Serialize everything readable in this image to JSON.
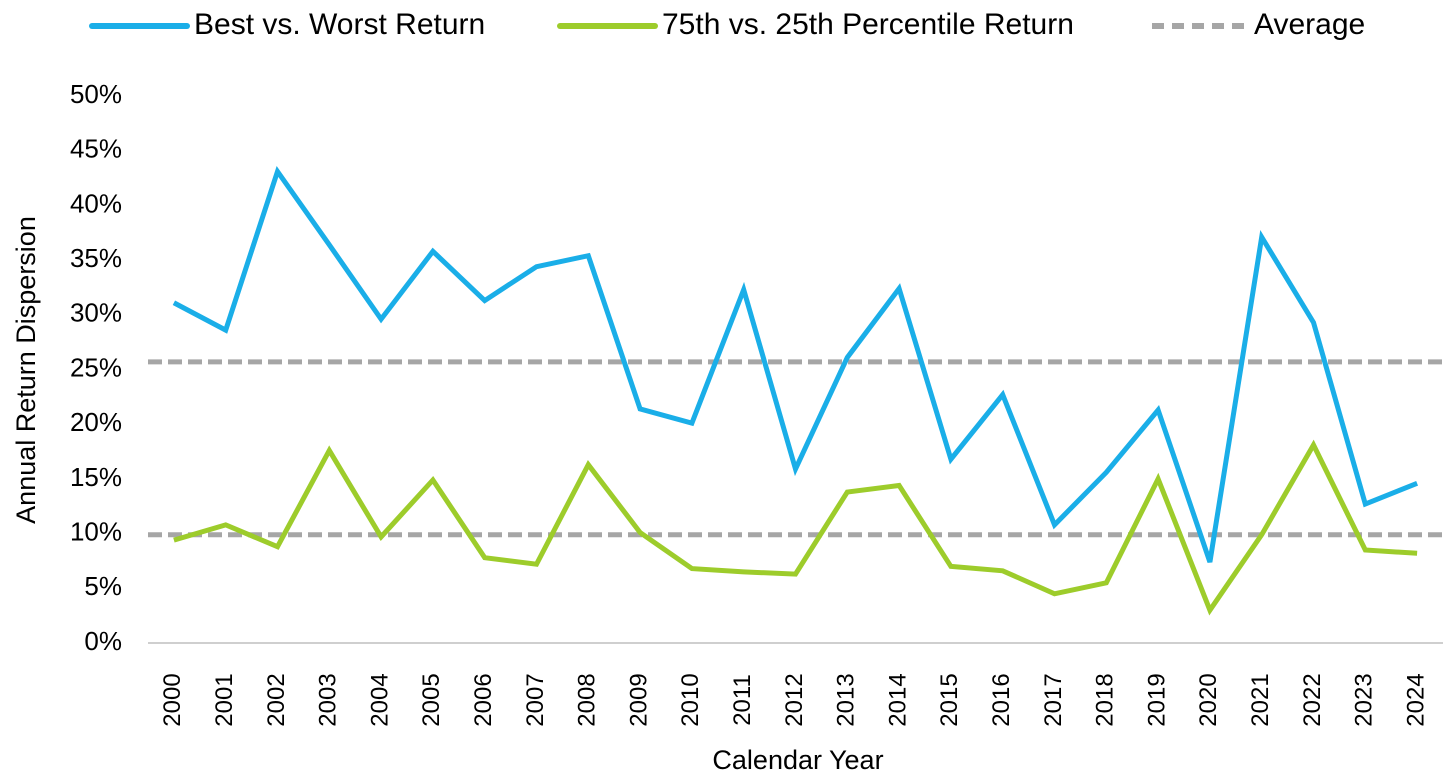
{
  "chart_data": {
    "type": "line",
    "legend": "top",
    "y_label": "Annual Return Dispersion",
    "x_label": "Calendar Year",
    "categories": [
      "2000",
      "2001",
      "2002",
      "2003",
      "2004",
      "2005",
      "2006",
      "2007",
      "2008",
      "2009",
      "2010",
      "2011",
      "2012",
      "2013",
      "2014",
      "2015",
      "2016",
      "2017",
      "2018",
      "2019",
      "2020",
      "2021",
      "2022",
      "2023",
      "2024"
    ],
    "series": [
      {
        "name": "Best vs. Worst Return",
        "color": "#1aaee8",
        "values": [
          31.1,
          28.6,
          43.1,
          36.4,
          29.6,
          35.8,
          31.3,
          34.4,
          35.4,
          21.4,
          20.1,
          32.3,
          15.9,
          26.1,
          32.4,
          16.8,
          22.7,
          10.8,
          15.6,
          21.3,
          7.4,
          37.1,
          29.3,
          12.7,
          14.6
        ]
      },
      {
        "name": "75th vs. 25th Percentile Return",
        "color": "#9dcc2b",
        "values": [
          9.4,
          10.8,
          8.8,
          17.6,
          9.7,
          14.9,
          7.8,
          7.2,
          16.3,
          10.1,
          6.8,
          6.5,
          6.3,
          13.8,
          14.4,
          7.0,
          6.6,
          4.5,
          5.5,
          15.0,
          3.0,
          9.9,
          18.1,
          8.5,
          8.2
        ]
      }
    ],
    "average": {
      "name": "Average",
      "color": "#a6a6a6",
      "values": [
        25.7,
        9.9
      ]
    },
    "ylim": [
      0,
      50
    ],
    "yticks": [
      {
        "value": 0,
        "label": "0%"
      },
      {
        "value": 5,
        "label": "5%"
      },
      {
        "value": 10,
        "label": "10%"
      },
      {
        "value": 15,
        "label": "15%"
      },
      {
        "value": 20,
        "label": "20%"
      },
      {
        "value": 25,
        "label": "25%"
      },
      {
        "value": 30,
        "label": "30%"
      },
      {
        "value": 35,
        "label": "35%"
      },
      {
        "value": 40,
        "label": "40%"
      },
      {
        "value": 45,
        "label": "45%"
      },
      {
        "value": 50,
        "label": "50%"
      }
    ],
    "grid": false
  }
}
